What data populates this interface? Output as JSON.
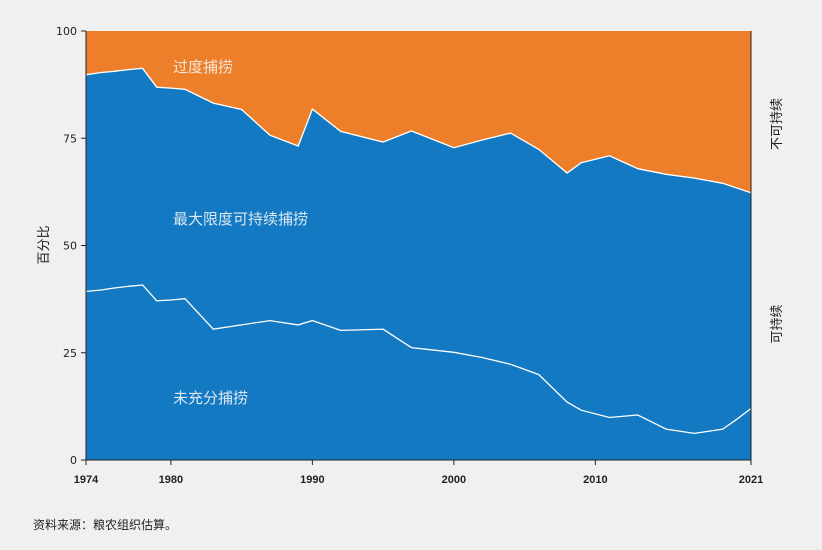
{
  "chart_data": {
    "type": "area",
    "stacked": true,
    "x": [
      1974,
      1975,
      1976,
      1977,
      1978,
      1979,
      1980,
      1981,
      1983,
      1985,
      1987,
      1989,
      1990,
      1992,
      1995,
      1997,
      2000,
      2002,
      2004,
      2006,
      2008,
      2009,
      2011,
      2013,
      2015,
      2017,
      2019,
      2020,
      2021
    ],
    "series": [
      {
        "name": "未充分捕捞",
        "color": "#1279c2",
        "cumulative": [
          39.3,
          39.6,
          40.1,
          40.5,
          40.8,
          37.1,
          37.3,
          37.6,
          30.5,
          31.5,
          32.5,
          31.5,
          32.5,
          30.2,
          30.5,
          26.2,
          25.1,
          23.9,
          22.3,
          19.9,
          13.5,
          11.6,
          9.9,
          10.5,
          7.2,
          6.2,
          7.2,
          9.5,
          12.0
        ]
      },
      {
        "name": "最大限度可持续捕捞",
        "color": "#1279c2",
        "cumulative": [
          89.8,
          90.3,
          90.6,
          91.0,
          91.3,
          86.9,
          86.7,
          86.4,
          83.2,
          81.7,
          75.7,
          73.2,
          81.8,
          76.6,
          74.1,
          76.7,
          72.8,
          74.6,
          76.2,
          72.4,
          66.9,
          69.3,
          70.9,
          67.9,
          66.6,
          65.7,
          64.5,
          63.4,
          62.3
        ]
      },
      {
        "name": "过度捕捞",
        "color": "#ee7f2a",
        "cumulative": [
          100,
          100,
          100,
          100,
          100,
          100,
          100,
          100,
          100,
          100,
          100,
          100,
          100,
          100,
          100,
          100,
          100,
          100,
          100,
          100,
          100,
          100,
          100,
          100,
          100,
          100,
          100,
          100,
          100
        ]
      }
    ],
    "xlim": [
      1974,
      2021
    ],
    "ylim": [
      0,
      100
    ],
    "xticks": [
      1974,
      1980,
      1990,
      2000,
      2010,
      2021
    ],
    "yticks": [
      0,
      25,
      50,
      75,
      100
    ],
    "ylabel": "百分比",
    "xlabel": "",
    "area_labels": [
      "过度捕捞",
      "最大限度可持续捕捞",
      "未充分捕捞"
    ],
    "right_labels": [
      "不可持续",
      "可持续"
    ],
    "grid": false
  },
  "source_note": "资料来源：粮农组织估算。",
  "colors": {
    "background": "#f0f0f0",
    "overfished": "#ee7f2a",
    "sustainable": "#1279c2",
    "separator": "#ffffff"
  }
}
